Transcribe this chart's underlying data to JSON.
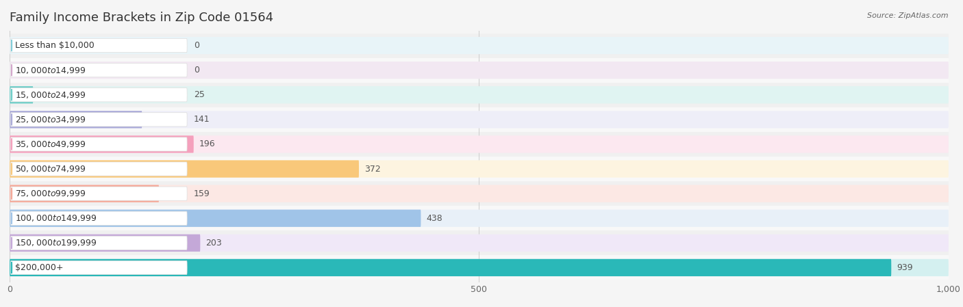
{
  "title": "Family Income Brackets in Zip Code 01564",
  "source_text": "Source: ZipAtlas.com",
  "categories": [
    "Less than $10,000",
    "$10,000 to $14,999",
    "$15,000 to $24,999",
    "$25,000 to $34,999",
    "$35,000 to $49,999",
    "$50,000 to $74,999",
    "$75,000 to $99,999",
    "$100,000 to $149,999",
    "$150,000 to $199,999",
    "$200,000+"
  ],
  "values": [
    0,
    0,
    25,
    141,
    196,
    372,
    159,
    438,
    203,
    939
  ],
  "bar_colors": [
    "#82cdd9",
    "#d4a8cc",
    "#6dcec8",
    "#aaaad8",
    "#f5a0bc",
    "#f9c87a",
    "#f5a898",
    "#a0c4e8",
    "#c4a8d8",
    "#2ab8b8"
  ],
  "bar_bg_colors": [
    "#e8f4f8",
    "#f2e8f2",
    "#e0f4f2",
    "#eeeef8",
    "#fce8f0",
    "#fdf4e0",
    "#fce8e4",
    "#e8f0f8",
    "#f0e8f8",
    "#d4f0f0"
  ],
  "row_bg_colors": [
    "#f0f0f0",
    "#f8f8f8",
    "#f0f0f0",
    "#f8f8f8",
    "#f0f0f0",
    "#f8f8f8",
    "#f0f0f0",
    "#f8f8f8",
    "#f0f0f0",
    "#f8f8f8"
  ],
  "xlim": [
    0,
    1000
  ],
  "xticks": [
    0,
    500,
    1000
  ],
  "xtick_labels": [
    "0",
    "500",
    "1,000"
  ],
  "background_color": "#f5f5f5",
  "title_fontsize": 13,
  "label_fontsize": 9,
  "value_fontsize": 9,
  "source_fontsize": 8
}
